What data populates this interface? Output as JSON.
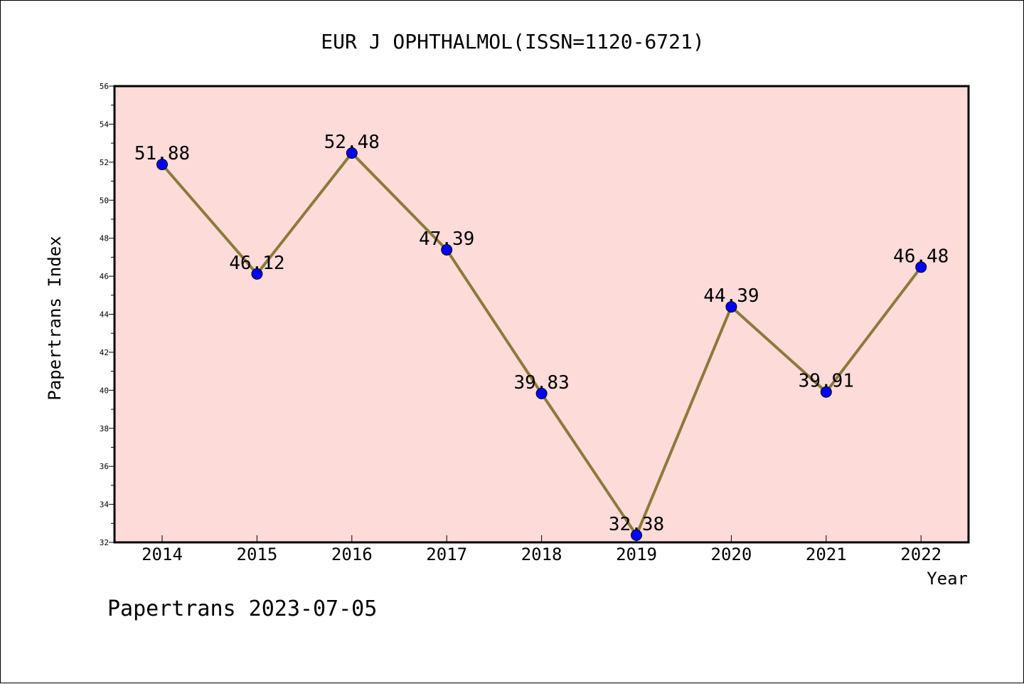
{
  "chart_data": {
    "type": "line",
    "title": "EUR J OPHTHALMOL(ISSN=1120-6721)",
    "xlabel": "Year",
    "ylabel": "Papertrans Index",
    "categories": [
      "2014",
      "2015",
      "2016",
      "2017",
      "2018",
      "2019",
      "2020",
      "2021",
      "2022"
    ],
    "values": [
      51.88,
      46.12,
      52.48,
      47.39,
      39.83,
      32.38,
      44.39,
      39.91,
      46.48
    ],
    "data_labels": [
      "51.88",
      "46.12",
      "52.48",
      "47.39",
      "39.83",
      "32.38",
      "44.39",
      "39.91",
      "46.48"
    ],
    "ylim": [
      32,
      56
    ],
    "yticks": [
      "32",
      "34",
      "36",
      "38",
      "40",
      "42",
      "44",
      "46",
      "48",
      "50",
      "52",
      "54",
      "56"
    ],
    "grid": false,
    "colors": {
      "plot_background": "#fddbd9",
      "line": "#8c7a3a",
      "marker": "#0000ff"
    }
  },
  "footer": {
    "text": "Papertrans 2023-07-05"
  }
}
